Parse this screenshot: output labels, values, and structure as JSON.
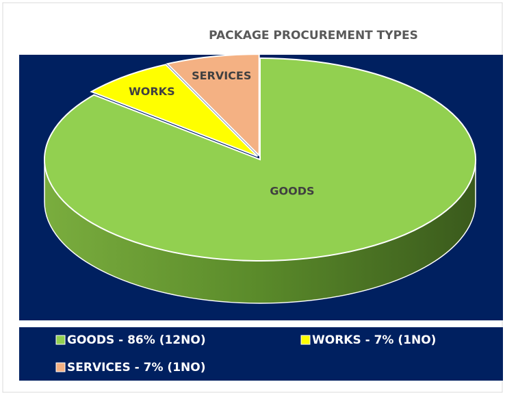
{
  "chart_data": {
    "type": "pie3d",
    "title": "PACKAGE PROCUREMENT TYPES",
    "categories": [
      "GOODS",
      "WORKS",
      "SERVICES"
    ],
    "values": [
      86,
      7,
      7
    ],
    "colors": [
      "#92d050",
      "#ffff00",
      "#f4b183"
    ],
    "legend_labels": [
      "GOODS - 86% (12NO)",
      "WORKS - 7% (1NO)",
      "SERVICES - 7% (1NO)"
    ]
  }
}
